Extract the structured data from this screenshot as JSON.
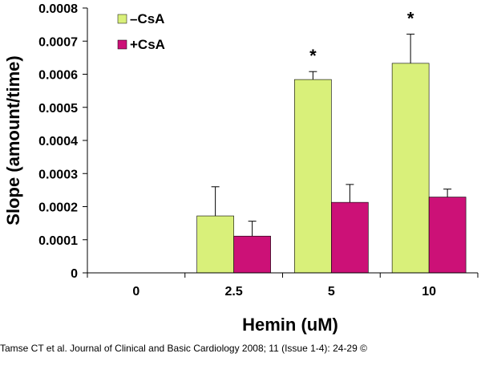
{
  "chart_data": {
    "type": "bar",
    "xlabel": "Hemin (uM)",
    "ylabel": "Slope (amount/time)",
    "ylim": [
      0,
      0.0008
    ],
    "yticks": [
      "0",
      "0.0001",
      "0.0002",
      "0.0003",
      "0.0004",
      "0.0005",
      "0.0006",
      "0.0007",
      "0.0008"
    ],
    "categories": [
      "0",
      "2.5",
      "5",
      "10"
    ],
    "series": [
      {
        "name": "–CsA",
        "color": "#d9f07a",
        "values": [
          0,
          0.000172,
          0.000584,
          0.000633
        ],
        "errors": [
          0,
          8.8e-05,
          2.4e-05,
          8.8e-05
        ]
      },
      {
        "name": "+CsA",
        "color": "#cc1177",
        "values": [
          0,
          0.000111,
          0.000213,
          0.000229
        ],
        "errors": [
          0,
          4.5e-05,
          5.4e-05,
          2.4e-05
        ]
      }
    ],
    "annotations": [
      "*",
      "*"
    ],
    "legend": "top-left",
    "grid": false
  },
  "citation": "Tamse CT et al. Journal of Clinical and Basic Cardiology 2008; 11 (Issue 1-4): 24-29 ©"
}
